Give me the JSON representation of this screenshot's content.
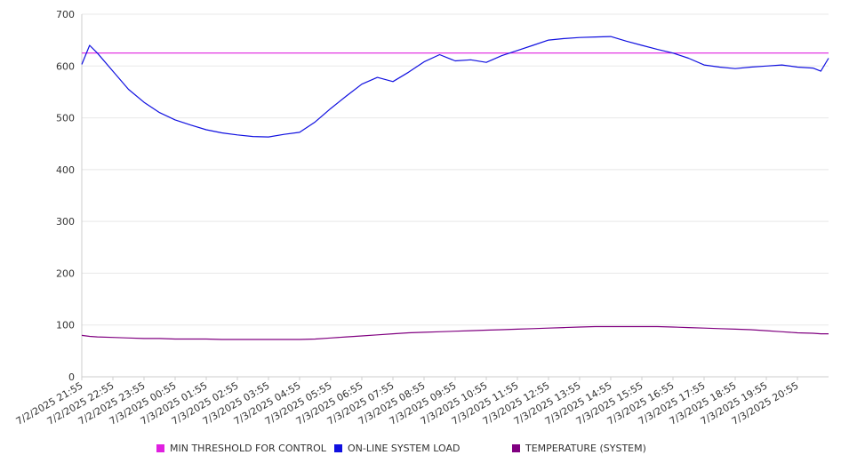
{
  "chart_data": {
    "type": "line",
    "ylim": [
      0,
      700
    ],
    "yticks": [
      0,
      100,
      200,
      300,
      400,
      500,
      600,
      700
    ],
    "grid": true,
    "legend_position": "bottom",
    "xtick_labels": [
      "7/2/2025 21:55",
      "7/2/2025 22:55",
      "7/2/2025 23:55",
      "7/3/2025 00:55",
      "7/3/2025 01:55",
      "7/3/2025 02:55",
      "7/3/2025 03:55",
      "7/3/2025 04:55",
      "7/3/2025 05:55",
      "7/3/2025 06:55",
      "7/3/2025 07:55",
      "7/3/2025 08:55",
      "7/3/2025 09:55",
      "7/3/2025 10:55",
      "7/3/2025 11:55",
      "7/3/2025 12:55",
      "7/3/2025 13:55",
      "7/3/2025 14:55",
      "7/3/2025 15:55",
      "7/3/2025 16:55",
      "7/3/2025 17:55",
      "7/3/2025 18:55",
      "7/3/2025 19:55",
      "7/3/2025 20:55"
    ],
    "x_hours": [
      0,
      0.25,
      0.5,
      1,
      1.5,
      2,
      2.5,
      3,
      3.5,
      4,
      4.5,
      5,
      5.5,
      6,
      6.5,
      7,
      7.5,
      8,
      8.5,
      9,
      9.5,
      10,
      10.5,
      11,
      11.5,
      12,
      12.5,
      13,
      13.5,
      14,
      14.5,
      15,
      15.5,
      16,
      16.5,
      17,
      17.5,
      18,
      18.5,
      19,
      19.5,
      20,
      20.5,
      21,
      21.5,
      22,
      22.5,
      23,
      23.5,
      23.75,
      24
    ],
    "series": [
      {
        "name": "MIN THRESHOLD FOR CONTROL",
        "color": "#e020e0",
        "values": [
          625,
          625,
          625,
          625,
          625,
          625,
          625,
          625,
          625,
          625,
          625,
          625,
          625,
          625,
          625,
          625,
          625,
          625,
          625,
          625,
          625,
          625,
          625,
          625,
          625,
          625,
          625,
          625,
          625,
          625,
          625,
          625,
          625,
          625,
          625,
          625,
          625,
          625,
          625,
          625,
          625,
          625,
          625,
          625,
          625,
          625,
          625,
          625,
          625,
          625,
          625
        ]
      },
      {
        "name": "ON-LINE SYSTEM LOAD",
        "color": "#1010e0",
        "values": [
          603,
          640,
          625,
          590,
          555,
          530,
          510,
          496,
          486,
          477,
          471,
          467,
          464,
          463,
          468,
          472,
          492,
          518,
          542,
          565,
          578,
          570,
          588,
          608,
          622,
          610,
          612,
          607,
          620,
          630,
          640,
          650,
          653,
          655,
          656,
          657,
          648,
          640,
          632,
          625,
          615,
          602,
          598,
          595,
          598,
          600,
          602,
          598,
          596,
          590,
          615
        ]
      },
      {
        "name": "TEMPERATURE (SYSTEM)",
        "color": "#800080",
        "values": [
          80,
          78,
          77,
          76,
          75,
          74,
          74,
          73,
          73,
          73,
          72,
          72,
          72,
          72,
          72,
          72,
          73,
          75,
          77,
          79,
          81,
          83,
          85,
          86,
          87,
          88,
          89,
          90,
          91,
          92,
          93,
          94,
          95,
          96,
          97,
          97,
          97,
          97,
          97,
          96,
          95,
          94,
          93,
          92,
          91,
          89,
          87,
          85,
          84,
          83,
          83
        ]
      }
    ]
  }
}
